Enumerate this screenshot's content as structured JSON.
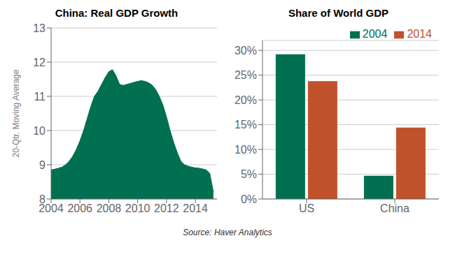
{
  "chart_data": [
    {
      "type": "area",
      "title": "China: Real GDP Growth",
      "ylabel": "20-Qtr. Moving Average",
      "x": [
        2004.0,
        2004.25,
        2004.5,
        2004.75,
        2005.0,
        2005.25,
        2005.5,
        2005.75,
        2006.0,
        2006.25,
        2006.5,
        2006.75,
        2007.0,
        2007.25,
        2007.5,
        2007.75,
        2008.0,
        2008.25,
        2008.5,
        2008.75,
        2009.0,
        2009.25,
        2009.5,
        2009.75,
        2010.0,
        2010.25,
        2010.5,
        2010.75,
        2011.0,
        2011.25,
        2011.5,
        2011.75,
        2012.0,
        2012.25,
        2012.5,
        2012.75,
        2013.0,
        2013.25,
        2013.5,
        2013.75,
        2014.0,
        2014.25,
        2014.5,
        2014.75,
        2015.0,
        2015.25
      ],
      "values": [
        8.85,
        8.87,
        8.9,
        8.93,
        9.0,
        9.1,
        9.25,
        9.45,
        9.7,
        10.0,
        10.35,
        10.7,
        11.0,
        11.15,
        11.35,
        11.55,
        11.72,
        11.78,
        11.6,
        11.35,
        11.32,
        11.35,
        11.38,
        11.41,
        11.44,
        11.46,
        11.44,
        11.4,
        11.33,
        11.2,
        11.0,
        10.75,
        10.4,
        10.0,
        9.65,
        9.35,
        9.1,
        9.0,
        8.96,
        8.93,
        8.91,
        8.9,
        8.88,
        8.85,
        8.75,
        8.2
      ],
      "color": "#007050",
      "xlim": [
        2004,
        2015.5
      ],
      "xticks": [
        2004,
        2006,
        2008,
        2010,
        2012,
        2014
      ],
      "ylim": [
        8,
        13
      ],
      "yticks": [
        8,
        9,
        10,
        11,
        12,
        13
      ],
      "grid": true
    },
    {
      "type": "bar",
      "title": "Share of World GDP",
      "categories": [
        "US",
        "China"
      ],
      "series": [
        {
          "name": "2004",
          "color": "#007050",
          "values": [
            0.292,
            0.047
          ]
        },
        {
          "name": "2014",
          "color": "#C0522B",
          "values": [
            0.238,
            0.144
          ]
        }
      ],
      "ylim": [
        0,
        0.32
      ],
      "yticks": [
        {
          "value": 0.0,
          "label": "0%"
        },
        {
          "value": 0.05,
          "label": "5%"
        },
        {
          "value": 0.1,
          "label": "10%"
        },
        {
          "value": 0.15,
          "label": "15%"
        },
        {
          "value": 0.2,
          "label": "20%"
        },
        {
          "value": 0.25,
          "label": "25%"
        },
        {
          "value": 0.3,
          "label": "30%"
        }
      ],
      "grid": true,
      "legend": "upper right",
      "annotations": [
        "Source: Haver Analytics"
      ]
    }
  ]
}
